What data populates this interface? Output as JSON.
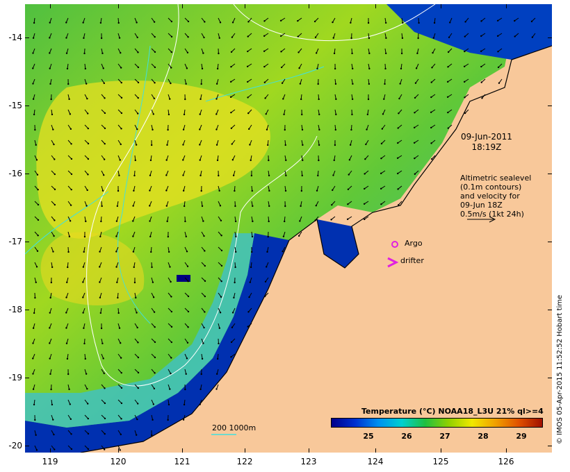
{
  "map": {
    "lon_ticks": [
      "119",
      "120",
      "121",
      "122",
      "123",
      "124",
      "125",
      "126"
    ],
    "lat_ticks": [
      "-14",
      "-15",
      "-16",
      "-17",
      "-18",
      "-19",
      "-20"
    ],
    "date": "09-Jun-2011",
    "time": "18:19Z",
    "altimetry_lines": [
      "Altimetric sealevel",
      "(0.1m contours)",
      "and velocity for",
      "09-Jun 18Z",
      "0.5m/s (1kt 24h)"
    ],
    "legend": {
      "argo_label": "Argo",
      "drifter_label": "drifter",
      "argo_color": "#e020e0",
      "drifter_color": "#e020e0"
    },
    "bathymetry_label": "200  1000m",
    "colorbar": {
      "title": "Temperature (°C) NOAA18_L3U 21% ql>=4",
      "ticks": [
        "25",
        "26",
        "27",
        "28",
        "29"
      ],
      "colors": [
        "#00008b",
        "#0030d0",
        "#0090f0",
        "#00d0d0",
        "#20c040",
        "#90d000",
        "#f0e800",
        "#f0a000",
        "#e05000",
        "#a01000"
      ]
    },
    "credit": "© IMOS 05-Apr-2015 11:52:52 Hobart time",
    "land_color": "#f8c89a"
  }
}
